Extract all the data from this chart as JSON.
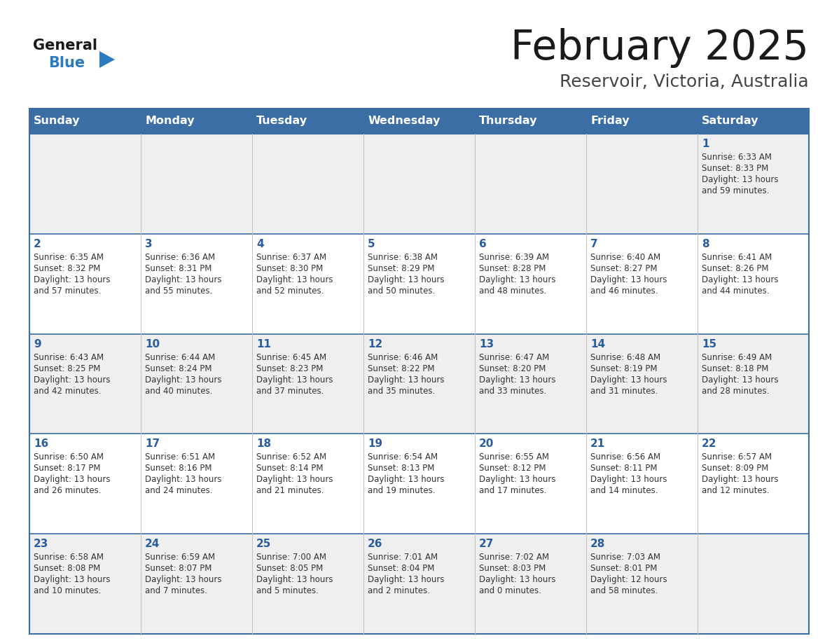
{
  "title": "February 2025",
  "subtitle": "Reservoir, Victoria, Australia",
  "header_bg": "#3a6ea5",
  "header_text_color": "#ffffff",
  "row_bg_odd": "#efefef",
  "row_bg_even": "#ffffff",
  "border_color": "#3a6ea5",
  "sep_color": "#c0c0c0",
  "day_headers": [
    "Sunday",
    "Monday",
    "Tuesday",
    "Wednesday",
    "Thursday",
    "Friday",
    "Saturday"
  ],
  "title_color": "#1a1a1a",
  "subtitle_color": "#444444",
  "day_num_color": "#2a5da0",
  "cell_text_color": "#333333",
  "logo_general_color": "#1a1a1a",
  "logo_blue_color": "#2c7bbf",
  "days": [
    {
      "day": 1,
      "col": 6,
      "row": 0,
      "sunrise": "6:33 AM",
      "sunset": "8:33 PM",
      "daylight": "13 hours and 59 minutes"
    },
    {
      "day": 2,
      "col": 0,
      "row": 1,
      "sunrise": "6:35 AM",
      "sunset": "8:32 PM",
      "daylight": "13 hours and 57 minutes"
    },
    {
      "day": 3,
      "col": 1,
      "row": 1,
      "sunrise": "6:36 AM",
      "sunset": "8:31 PM",
      "daylight": "13 hours and 55 minutes"
    },
    {
      "day": 4,
      "col": 2,
      "row": 1,
      "sunrise": "6:37 AM",
      "sunset": "8:30 PM",
      "daylight": "13 hours and 52 minutes"
    },
    {
      "day": 5,
      "col": 3,
      "row": 1,
      "sunrise": "6:38 AM",
      "sunset": "8:29 PM",
      "daylight": "13 hours and 50 minutes"
    },
    {
      "day": 6,
      "col": 4,
      "row": 1,
      "sunrise": "6:39 AM",
      "sunset": "8:28 PM",
      "daylight": "13 hours and 48 minutes"
    },
    {
      "day": 7,
      "col": 5,
      "row": 1,
      "sunrise": "6:40 AM",
      "sunset": "8:27 PM",
      "daylight": "13 hours and 46 minutes"
    },
    {
      "day": 8,
      "col": 6,
      "row": 1,
      "sunrise": "6:41 AM",
      "sunset": "8:26 PM",
      "daylight": "13 hours and 44 minutes"
    },
    {
      "day": 9,
      "col": 0,
      "row": 2,
      "sunrise": "6:43 AM",
      "sunset": "8:25 PM",
      "daylight": "13 hours and 42 minutes"
    },
    {
      "day": 10,
      "col": 1,
      "row": 2,
      "sunrise": "6:44 AM",
      "sunset": "8:24 PM",
      "daylight": "13 hours and 40 minutes"
    },
    {
      "day": 11,
      "col": 2,
      "row": 2,
      "sunrise": "6:45 AM",
      "sunset": "8:23 PM",
      "daylight": "13 hours and 37 minutes"
    },
    {
      "day": 12,
      "col": 3,
      "row": 2,
      "sunrise": "6:46 AM",
      "sunset": "8:22 PM",
      "daylight": "13 hours and 35 minutes"
    },
    {
      "day": 13,
      "col": 4,
      "row": 2,
      "sunrise": "6:47 AM",
      "sunset": "8:20 PM",
      "daylight": "13 hours and 33 minutes"
    },
    {
      "day": 14,
      "col": 5,
      "row": 2,
      "sunrise": "6:48 AM",
      "sunset": "8:19 PM",
      "daylight": "13 hours and 31 minutes"
    },
    {
      "day": 15,
      "col": 6,
      "row": 2,
      "sunrise": "6:49 AM",
      "sunset": "8:18 PM",
      "daylight": "13 hours and 28 minutes"
    },
    {
      "day": 16,
      "col": 0,
      "row": 3,
      "sunrise": "6:50 AM",
      "sunset": "8:17 PM",
      "daylight": "13 hours and 26 minutes"
    },
    {
      "day": 17,
      "col": 1,
      "row": 3,
      "sunrise": "6:51 AM",
      "sunset": "8:16 PM",
      "daylight": "13 hours and 24 minutes"
    },
    {
      "day": 18,
      "col": 2,
      "row": 3,
      "sunrise": "6:52 AM",
      "sunset": "8:14 PM",
      "daylight": "13 hours and 21 minutes"
    },
    {
      "day": 19,
      "col": 3,
      "row": 3,
      "sunrise": "6:54 AM",
      "sunset": "8:13 PM",
      "daylight": "13 hours and 19 minutes"
    },
    {
      "day": 20,
      "col": 4,
      "row": 3,
      "sunrise": "6:55 AM",
      "sunset": "8:12 PM",
      "daylight": "13 hours and 17 minutes"
    },
    {
      "day": 21,
      "col": 5,
      "row": 3,
      "sunrise": "6:56 AM",
      "sunset": "8:11 PM",
      "daylight": "13 hours and 14 minutes"
    },
    {
      "day": 22,
      "col": 6,
      "row": 3,
      "sunrise": "6:57 AM",
      "sunset": "8:09 PM",
      "daylight": "13 hours and 12 minutes"
    },
    {
      "day": 23,
      "col": 0,
      "row": 4,
      "sunrise": "6:58 AM",
      "sunset": "8:08 PM",
      "daylight": "13 hours and 10 minutes"
    },
    {
      "day": 24,
      "col": 1,
      "row": 4,
      "sunrise": "6:59 AM",
      "sunset": "8:07 PM",
      "daylight": "13 hours and 7 minutes"
    },
    {
      "day": 25,
      "col": 2,
      "row": 4,
      "sunrise": "7:00 AM",
      "sunset": "8:05 PM",
      "daylight": "13 hours and 5 minutes"
    },
    {
      "day": 26,
      "col": 3,
      "row": 4,
      "sunrise": "7:01 AM",
      "sunset": "8:04 PM",
      "daylight": "13 hours and 2 minutes"
    },
    {
      "day": 27,
      "col": 4,
      "row": 4,
      "sunrise": "7:02 AM",
      "sunset": "8:03 PM",
      "daylight": "13 hours and 0 minutes"
    },
    {
      "day": 28,
      "col": 5,
      "row": 4,
      "sunrise": "7:03 AM",
      "sunset": "8:01 PM",
      "daylight": "12 hours and 58 minutes"
    }
  ]
}
